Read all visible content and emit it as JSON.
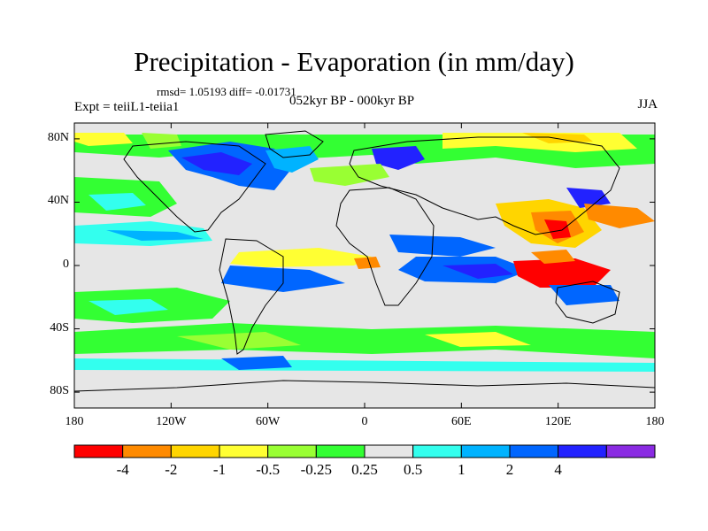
{
  "title": "Precipitation - Evaporation (in mm/day)",
  "stats": "rmsd= 1.05193 diff= -0.01731",
  "experiment": "Expt = teiiL1-teiia1",
  "period": "052kyr BP - 000kyr BP",
  "season": "JJA",
  "y_axis": {
    "ticks": [
      {
        "label": "80N",
        "lat": 80
      },
      {
        "label": "40N",
        "lat": 40
      },
      {
        "label": "0",
        "lat": 0
      },
      {
        "label": "40S",
        "lat": -40
      },
      {
        "label": "80S",
        "lat": -80
      }
    ]
  },
  "x_axis": {
    "ticks": [
      {
        "label": "180",
        "lon": -180
      },
      {
        "label": "120W",
        "lon": -120
      },
      {
        "label": "60W",
        "lon": -60
      },
      {
        "label": "0",
        "lon": 0
      },
      {
        "label": "60E",
        "lon": 60
      },
      {
        "label": "120E",
        "lon": 120
      },
      {
        "label": "180",
        "lon": 180
      }
    ]
  },
  "colorbar": {
    "colors": [
      "#ff0000",
      "#ff8a00",
      "#ffd500",
      "#ffff33",
      "#99ff33",
      "#33ff33",
      "#e6e6e6",
      "#33ffee",
      "#00b3ff",
      "#0066ff",
      "#2222ff",
      "#8a2be2"
    ],
    "labels": [
      "-4",
      "-2",
      "-1",
      "-0.5",
      "-0.25",
      "0.25",
      "0.5",
      "1",
      "2",
      "4"
    ]
  },
  "palette": {
    "red": "#ff0000",
    "orange": "#ff8a00",
    "yellow": "#ffd500",
    "light_yellow": "#ffff33",
    "light_green": "#99ff33",
    "green": "#33ff33",
    "grey": "#e6e6e6",
    "cyan": "#33ffee",
    "light_blue": "#00b3ff",
    "blue": "#0066ff",
    "dark_blue": "#2222ff",
    "purple": "#8a2be2"
  }
}
